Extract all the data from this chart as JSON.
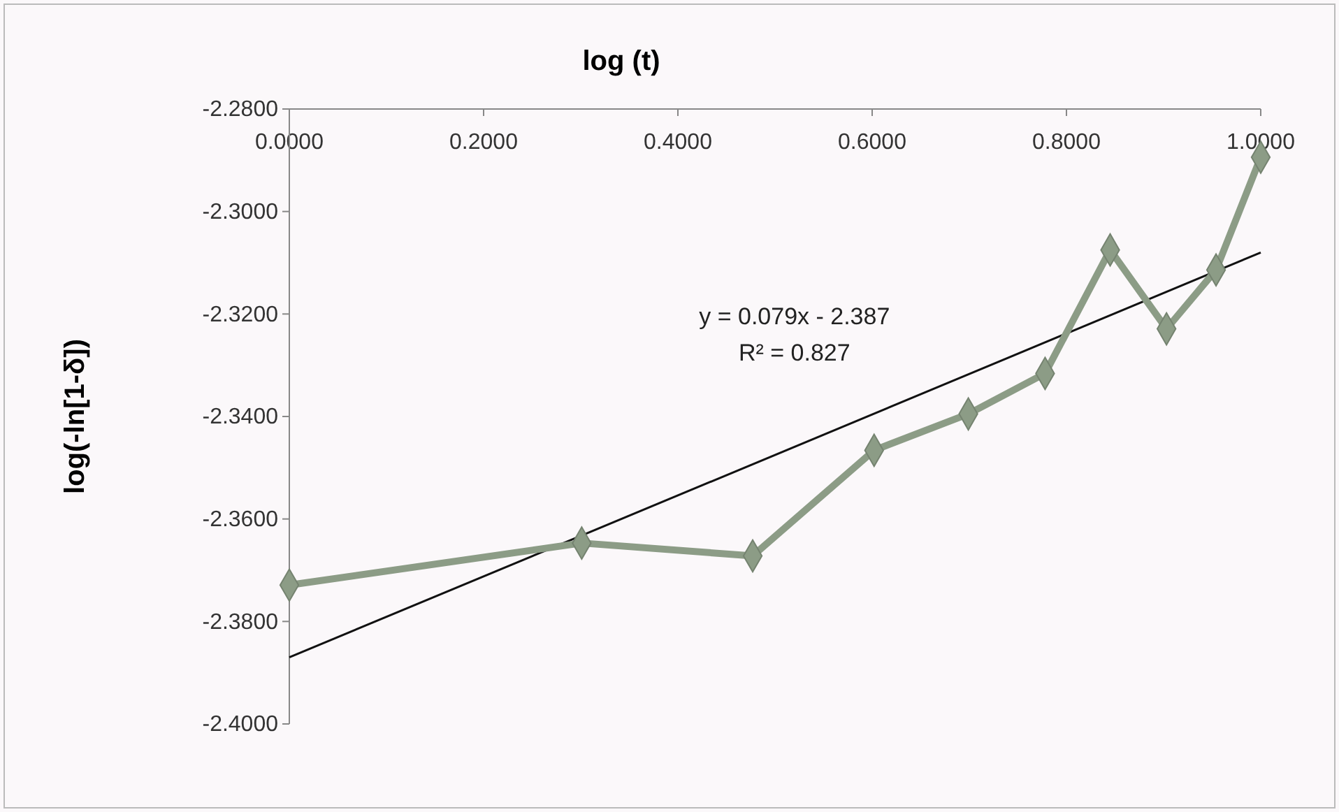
{
  "chart_data": {
    "type": "line",
    "xlabel": "log (t)",
    "ylabel": "log(-ln[1-δ])",
    "xlim": [
      0,
      1
    ],
    "xticks": [
      {
        "value": 0,
        "label": "0.0000"
      },
      {
        "value": 0.2,
        "label": "0.2000"
      },
      {
        "value": 0.4,
        "label": "0.4000"
      },
      {
        "value": 0.6,
        "label": "0.6000"
      },
      {
        "value": 0.8,
        "label": "0.8000"
      },
      {
        "value": 1,
        "label": "1.0000"
      }
    ],
    "ylim": [
      -2.4,
      -2.28
    ],
    "yticks": [
      {
        "value": -2.4,
        "label": "-2.4000"
      },
      {
        "value": -2.38,
        "label": "-2.3800"
      },
      {
        "value": -2.36,
        "label": "-2.3600"
      },
      {
        "value": -2.34,
        "label": "-2.3400"
      },
      {
        "value": -2.32,
        "label": "-2.3200"
      },
      {
        "value": -2.3,
        "label": "-2.3000"
      },
      {
        "value": -2.28,
        "label": "-2.2800"
      }
    ],
    "marker": "diamond",
    "line_style": "solid",
    "series": [
      {
        "color": "#8c9c86",
        "x": [
          0,
          0.301,
          0.477,
          0.602,
          0.699,
          0.778,
          0.845,
          0.903,
          0.954,
          1
        ],
        "values": [
          -2.3729,
          -2.3647,
          -2.3672,
          -2.3466,
          -2.3395,
          -2.3316,
          -2.3075,
          -2.3229,
          -2.3114,
          -2.2894
        ]
      },
      {
        "color": "#111111",
        "marker": "none",
        "x": [
          0,
          1
        ],
        "values": [
          -2.387,
          -2.308
        ]
      }
    ],
    "annotations": [
      "y = 0.079x - 2.387",
      "R² = 0.827"
    ]
  }
}
